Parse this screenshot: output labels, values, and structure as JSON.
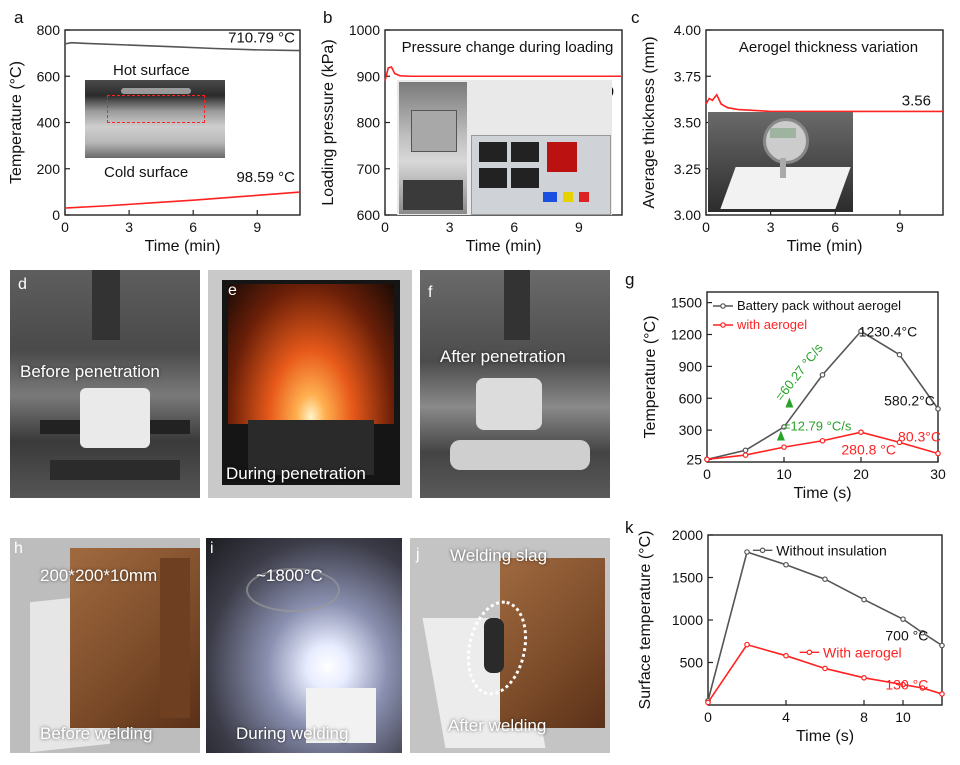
{
  "panel_letters": [
    "a",
    "b",
    "c",
    "d",
    "e",
    "f",
    "g",
    "h",
    "i",
    "j",
    "k"
  ],
  "photo_labels": {
    "d": "Before penetration",
    "e": "During penetration",
    "f": "After penetration",
    "h_top": "200*200*10mm",
    "h_bottom": "Before welding",
    "i_top": "~1800°C",
    "i_bottom": "During welding",
    "j_top": "Welding slag",
    "j_bottom": "After welding"
  },
  "inset_labels": {
    "a_hot": "Hot surface",
    "a_cold": "Cold surface"
  },
  "colors": {
    "gray_series": "#555555",
    "red_series": "#ff2222",
    "green_annot": "#2aa32a"
  },
  "chart_data": [
    {
      "id": "a",
      "type": "line",
      "xlabel": "Time (min)",
      "ylabel": "Temperature (°C)",
      "xlim": [
        0,
        11
      ],
      "ylim": [
        0,
        800
      ],
      "xticks": [
        0,
        3,
        6,
        9
      ],
      "yticks": [
        0,
        200,
        400,
        600,
        800
      ],
      "series": [
        {
          "color": "#555555",
          "x": [
            0,
            0.3,
            1,
            3,
            5,
            7,
            9,
            11
          ],
          "y": [
            740,
            745,
            742,
            735,
            728,
            720,
            714,
            711
          ]
        },
        {
          "color": "#ff2222",
          "x": [
            0,
            2,
            4,
            6,
            8,
            10,
            11
          ],
          "y": [
            30,
            40,
            52,
            64,
            78,
            92,
            99
          ]
        }
      ],
      "annotations": [
        "710.79 °C",
        "98.59 °C"
      ]
    },
    {
      "id": "b",
      "type": "line",
      "title": "Pressure change during loading",
      "xlabel": "Time (min)",
      "ylabel": "Loading pressure (kPa)",
      "xlim": [
        0,
        11
      ],
      "ylim": [
        600,
        1000
      ],
      "xticks": [
        0,
        3,
        6,
        9
      ],
      "yticks": [
        600,
        700,
        800,
        900,
        1000
      ],
      "series": [
        {
          "color": "#ff2222",
          "x": [
            0,
            0.15,
            0.3,
            0.45,
            0.7,
            1.2,
            3,
            6,
            9,
            11
          ],
          "y": [
            890,
            918,
            920,
            906,
            901,
            900,
            900,
            900,
            900,
            900
          ]
        }
      ],
      "annotations": [
        "900.0"
      ]
    },
    {
      "id": "c",
      "type": "line",
      "title": "Aerogel thickness variation",
      "xlabel": "Time (min)",
      "ylabel": "Average thickness (mm)",
      "xlim": [
        0,
        11
      ],
      "ylim": [
        3.0,
        4.0
      ],
      "xticks": [
        0,
        3,
        6,
        9
      ],
      "yticks": [
        3.0,
        3.25,
        3.5,
        3.75,
        4.0
      ],
      "ytick_labels": [
        "3.00",
        "3.25",
        "3.50",
        "3.75",
        "4.00"
      ],
      "series": [
        {
          "color": "#ff2222",
          "x": [
            0,
            0.15,
            0.3,
            0.5,
            0.7,
            1,
            1.5,
            3,
            6,
            9,
            11
          ],
          "y": [
            3.6,
            3.63,
            3.62,
            3.65,
            3.6,
            3.58,
            3.57,
            3.56,
            3.56,
            3.56,
            3.56
          ]
        }
      ],
      "annotations": [
        "3.56"
      ]
    },
    {
      "id": "g",
      "type": "line",
      "xlabel": "Time (s)",
      "ylabel": "Temperature (°C)",
      "xlim": [
        0,
        30
      ],
      "ylim": [
        0,
        1600
      ],
      "xticks": [
        0,
        10,
        20,
        30
      ],
      "yticks": [
        25,
        300,
        600,
        900,
        1200,
        1500
      ],
      "legend": "top-left",
      "series": [
        {
          "name": "Battery pack without aerogel",
          "color": "#555555",
          "x": [
            0,
            5,
            10,
            15,
            20,
            25,
            30
          ],
          "y": [
            25,
            110,
            330,
            820,
            1230.4,
            1010,
            500
          ]
        },
        {
          "name": "with aerogel",
          "color": "#ff2222",
          "x": [
            0,
            5,
            10,
            15,
            20,
            25,
            30
          ],
          "y": [
            25,
            65,
            140,
            200,
            280.8,
            185,
            80.3
          ]
        }
      ],
      "annotations": [
        "1230.4°C",
        "580.2°C",
        "280.8 °C",
        "80.3°C",
        "=60.27 °C/s",
        "=12.79 °C/s"
      ]
    },
    {
      "id": "k",
      "type": "line",
      "xlabel": "Time (s)",
      "ylabel": "Surface temperature (°C)",
      "xlim": [
        0,
        12
      ],
      "ylim": [
        0,
        2000
      ],
      "xticks": [
        0,
        4,
        8,
        10
      ],
      "yticks": [
        500,
        1000,
        1500,
        2000
      ],
      "series": [
        {
          "name": "Without insulation",
          "color": "#555555",
          "x": [
            0,
            2,
            4,
            6,
            8,
            10,
            11,
            12
          ],
          "y": [
            50,
            1800,
            1650,
            1480,
            1240,
            1010,
            850,
            700
          ]
        },
        {
          "name": "With aerogel",
          "color": "#ff2222",
          "x": [
            0,
            2,
            4,
            6,
            8,
            10,
            11,
            12
          ],
          "y": [
            30,
            710,
            580,
            430,
            320,
            240,
            200,
            130
          ]
        }
      ],
      "annotations": [
        "700 °C",
        "130 °C"
      ]
    }
  ]
}
